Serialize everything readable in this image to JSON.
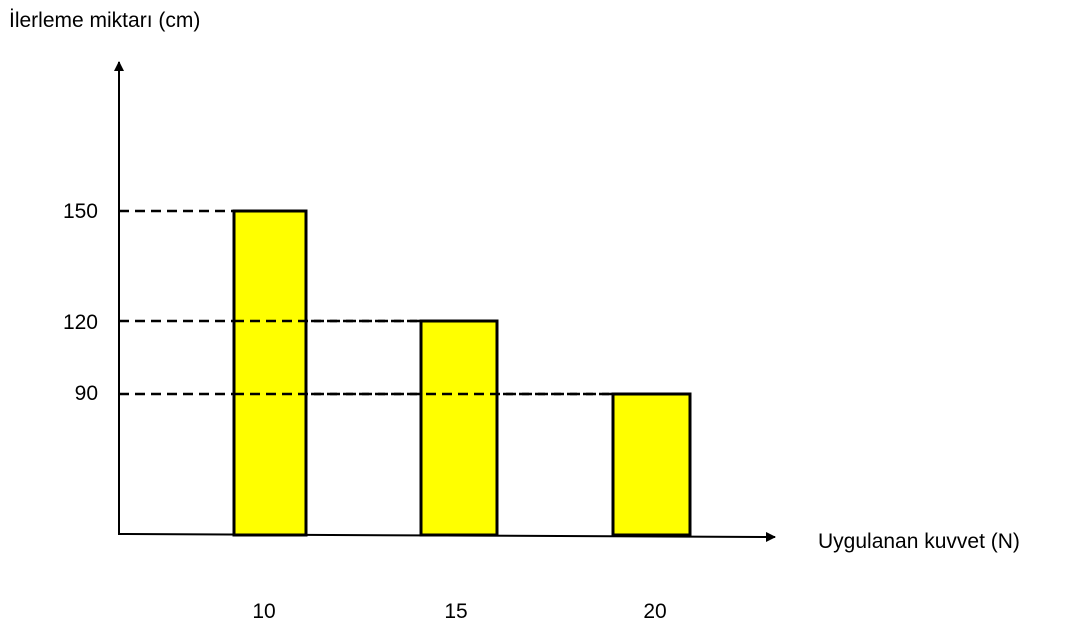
{
  "chart_data": {
    "type": "bar",
    "ylabel": "İlerleme miktarı (cm)",
    "xlabel": "Uygulanan kuvvet (N)",
    "categories": [
      "10",
      "15",
      "20"
    ],
    "values": [
      150,
      120,
      90
    ],
    "y_ticks": [
      "150",
      "120",
      "90"
    ],
    "reference_lines": [
      150,
      120,
      90
    ],
    "grid": false,
    "bar_color": "#ffff00",
    "outline_color": "#000000"
  }
}
